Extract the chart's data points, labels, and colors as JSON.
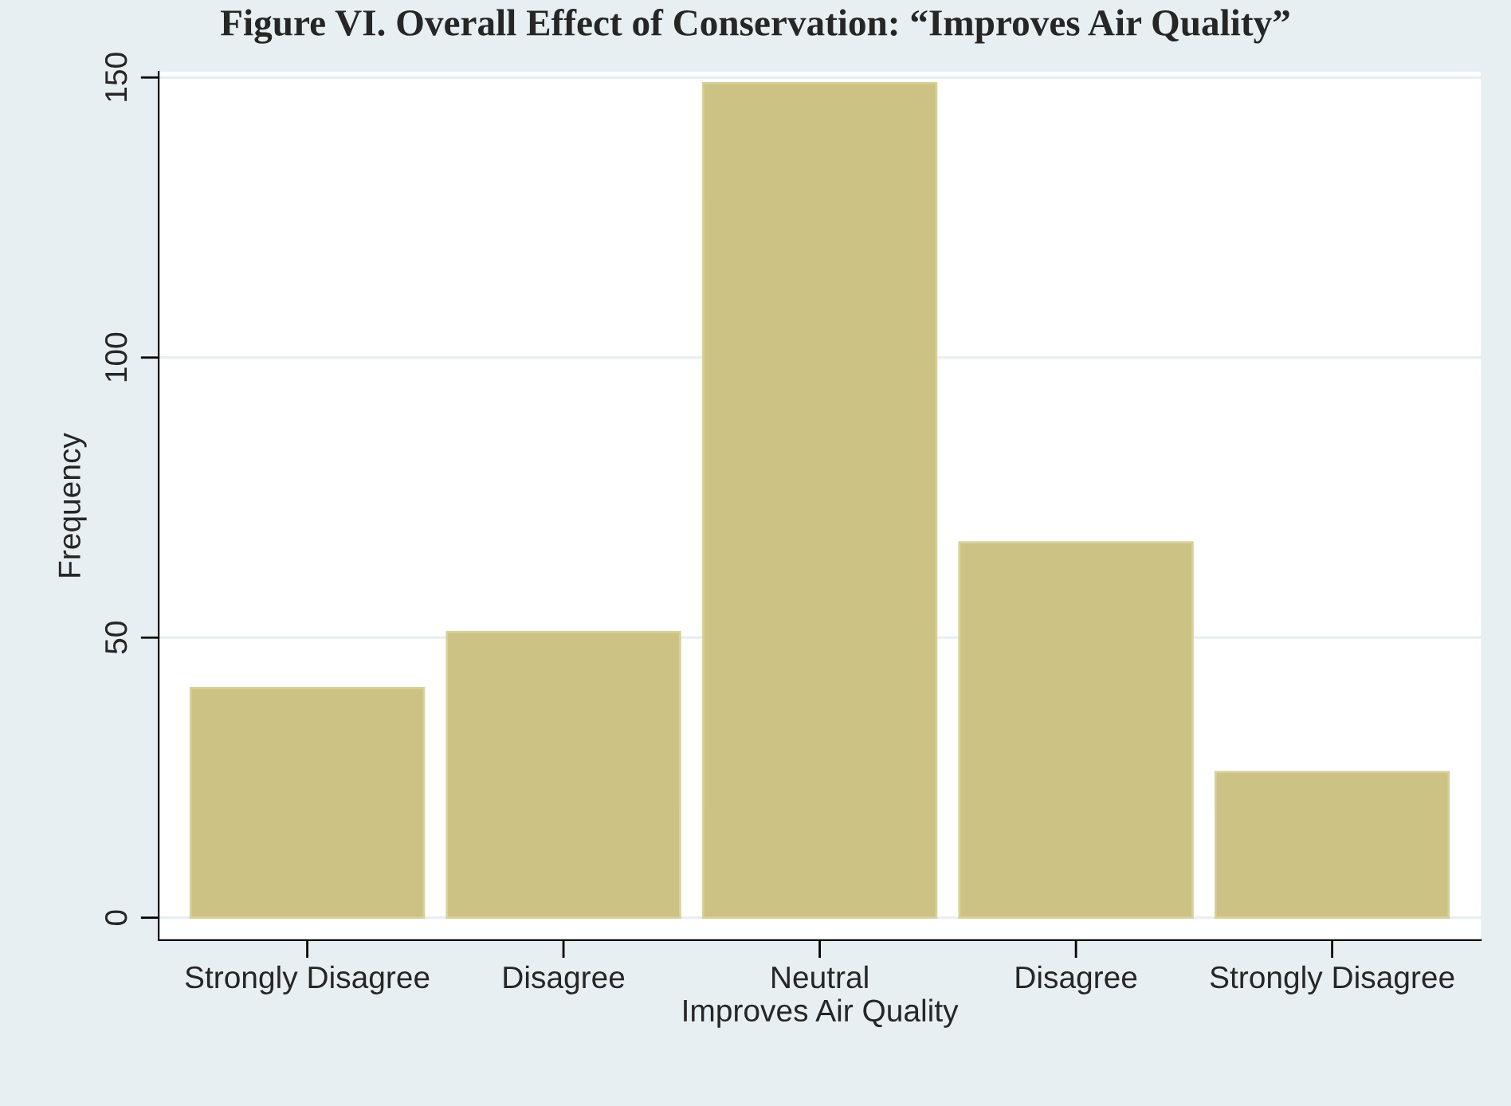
{
  "chart_data": {
    "type": "bar",
    "title": "Figure VI. Overall Effect of Conservation: “Improves Air Quality”",
    "xlabel": "Improves Air Quality",
    "ylabel": "Frequency",
    "categories": [
      "Strongly Disagree",
      "Disagree",
      "Neutral",
      "Disagree",
      "Strongly Disagree"
    ],
    "values": [
      41,
      51,
      149,
      67,
      26
    ],
    "color": "#ccc283",
    "ylim": [
      -4,
      151
    ],
    "yticks": [
      0,
      50,
      100,
      150
    ],
    "grid": "y"
  }
}
